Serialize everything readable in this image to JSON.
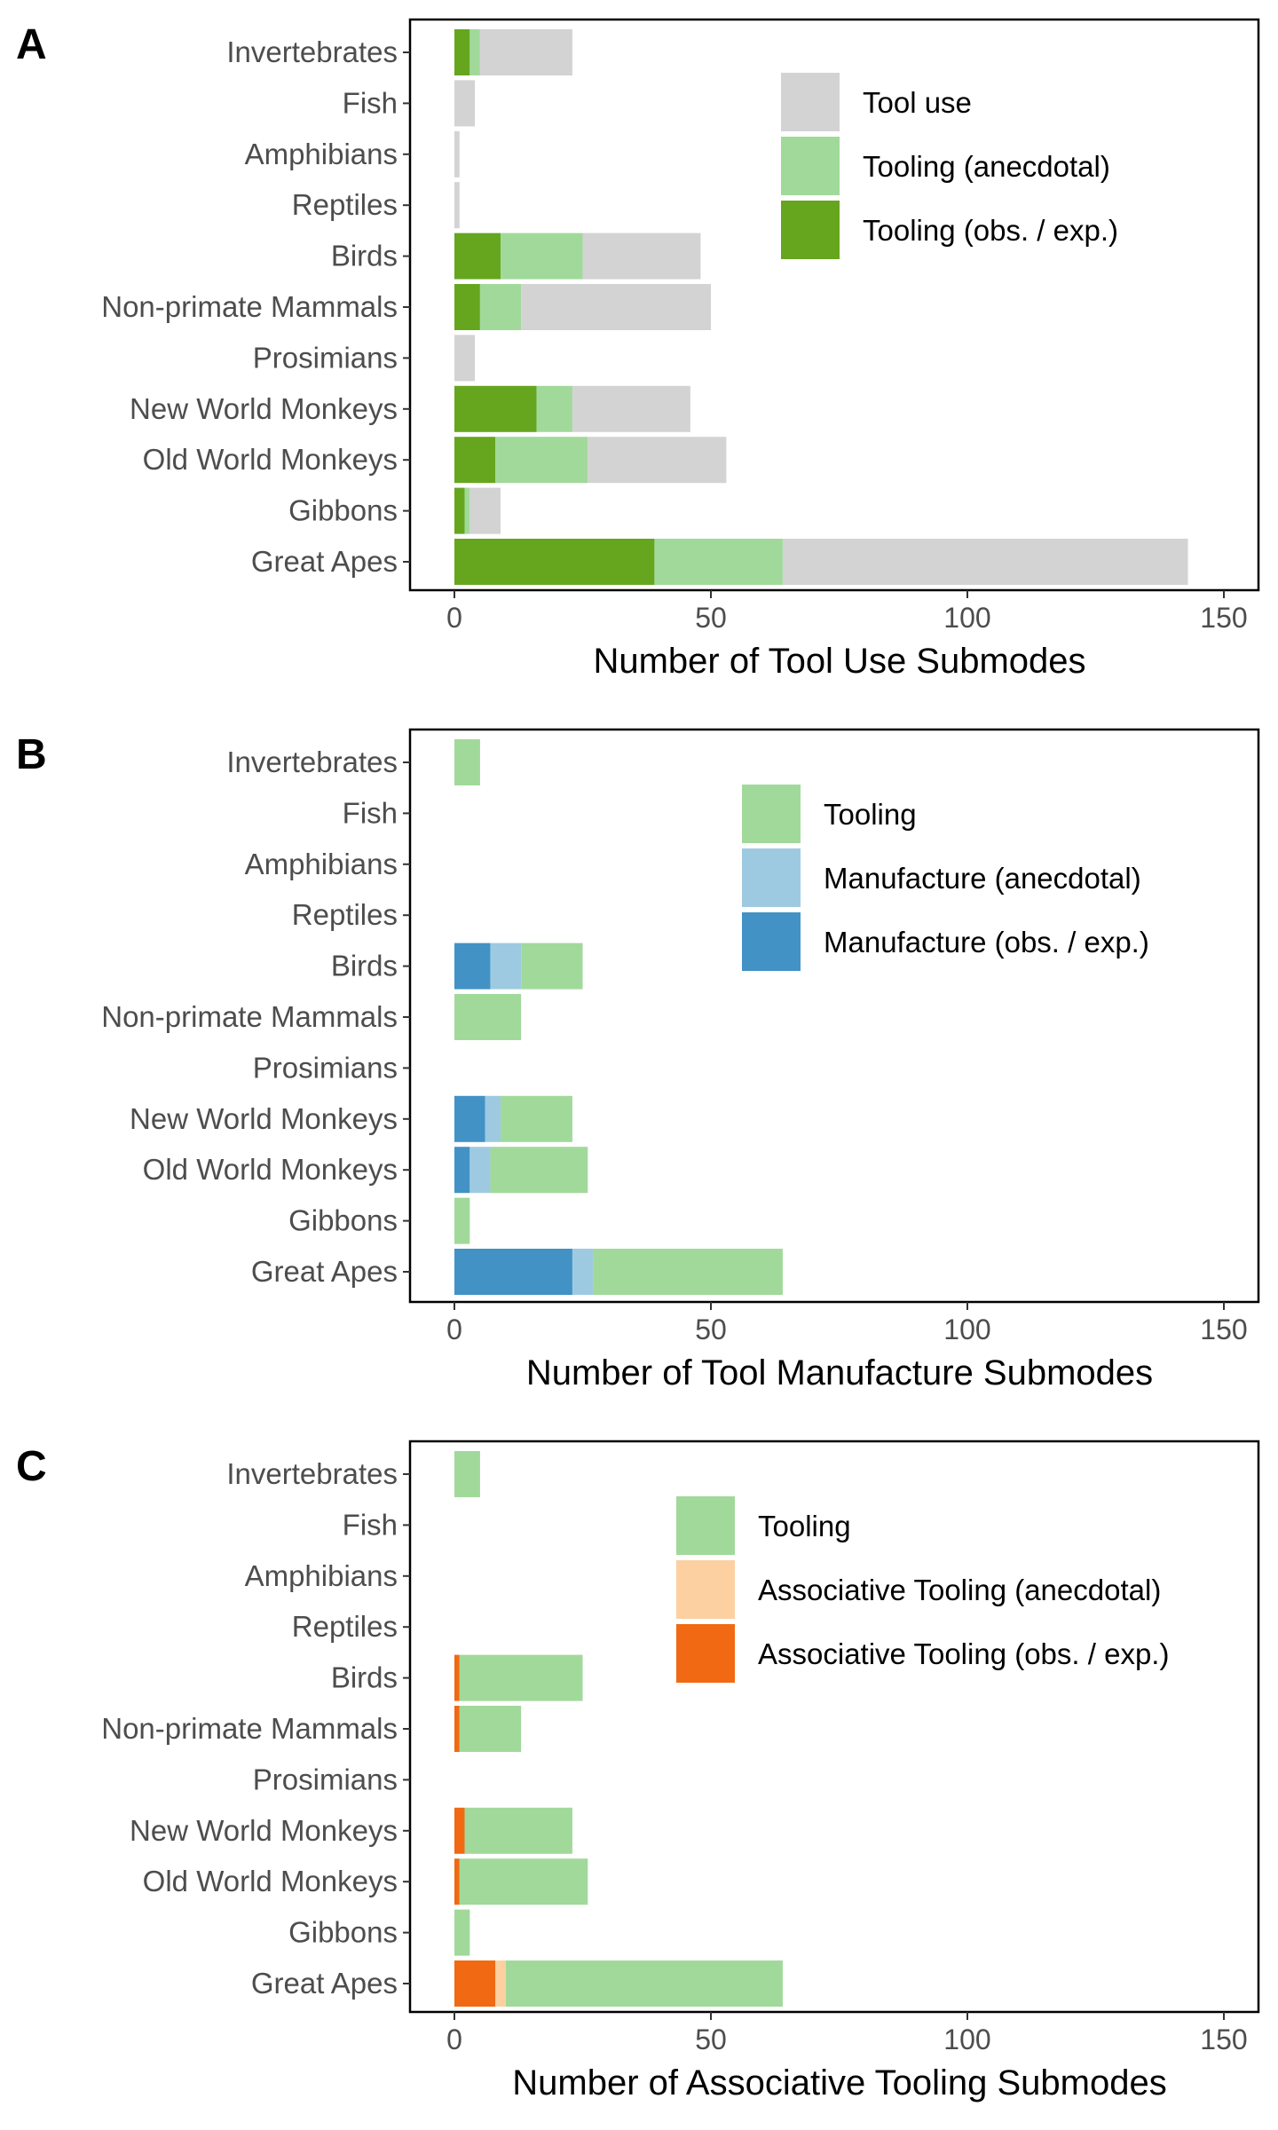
{
  "chart_data": [
    {
      "type": "bar",
      "orientation": "horizontal",
      "stacked": true,
      "panel": "A",
      "categories": [
        "Invertebrates",
        "Fish",
        "Amphibians",
        "Reptiles",
        "Birds",
        "Non-primate Mammals",
        "Prosimians",
        "New World Monkeys",
        "Old World Monkeys",
        "Gibbons",
        "Great Apes"
      ],
      "series": [
        {
          "name": "Tooling (obs. / exp.)",
          "color": "#66a61e",
          "values": [
            3,
            0,
            0,
            0,
            9,
            5,
            0,
            16,
            8,
            2,
            39
          ]
        },
        {
          "name": "Tooling (anecdotal)",
          "color": "#a1d99b",
          "values": [
            2,
            0,
            0,
            0,
            16,
            8,
            0,
            7,
            18,
            1,
            25
          ]
        },
        {
          "name": "Tool use",
          "color": "#d3d3d3",
          "values": [
            18,
            4,
            1,
            1,
            23,
            37,
            4,
            23,
            27,
            6,
            79
          ]
        }
      ],
      "legend_order": [
        "Tool use",
        "Tooling (anecdotal)",
        "Tooling (obs. / exp.)"
      ],
      "xlabel": "Number of Tool Use Submodes",
      "xlim": [
        -8,
        157
      ],
      "xticks": [
        0,
        50,
        100,
        150
      ],
      "legend_position": "top-right"
    },
    {
      "type": "bar",
      "orientation": "horizontal",
      "stacked": true,
      "panel": "B",
      "categories": [
        "Invertebrates",
        "Fish",
        "Amphibians",
        "Reptiles",
        "Birds",
        "Non-primate Mammals",
        "Prosimians",
        "New World Monkeys",
        "Old World Monkeys",
        "Gibbons",
        "Great Apes"
      ],
      "series": [
        {
          "name": "Manufacture (obs. / exp.)",
          "color": "#4292c6",
          "values": [
            0,
            0,
            0,
            0,
            7,
            0,
            0,
            6,
            3,
            0,
            23
          ]
        },
        {
          "name": "Manufacture (anecdotal)",
          "color": "#9ecae1",
          "values": [
            0,
            0,
            0,
            0,
            6,
            0,
            0,
            3,
            4,
            0,
            4
          ]
        },
        {
          "name": "Tooling",
          "color": "#a1d99b",
          "values": [
            5,
            0,
            0,
            0,
            12,
            13,
            0,
            14,
            19,
            3,
            37
          ]
        }
      ],
      "legend_order": [
        "Tooling",
        "Manufacture (anecdotal)",
        "Manufacture (obs. / exp.)"
      ],
      "xlabel": "Number of Tool Manufacture Submodes",
      "xlim": [
        -8,
        157
      ],
      "xticks": [
        0,
        50,
        100,
        150
      ],
      "legend_position": "top-right"
    },
    {
      "type": "bar",
      "orientation": "horizontal",
      "stacked": true,
      "panel": "C",
      "categories": [
        "Invertebrates",
        "Fish",
        "Amphibians",
        "Reptiles",
        "Birds",
        "Non-primate Mammals",
        "Prosimians",
        "New World Monkeys",
        "Old World Monkeys",
        "Gibbons",
        "Great Apes"
      ],
      "series": [
        {
          "name": "Associative Tooling (obs. / exp.)",
          "color": "#f16913",
          "values": [
            0,
            0,
            0,
            0,
            1,
            1,
            0,
            2,
            1,
            0,
            8
          ]
        },
        {
          "name": "Associative Tooling (anecdotal)",
          "color": "#fdd0a2",
          "values": [
            0,
            0,
            0,
            0,
            0,
            0,
            0,
            0,
            0,
            0,
            2
          ]
        },
        {
          "name": "Tooling",
          "color": "#a1d99b",
          "values": [
            5,
            0,
            0,
            0,
            24,
            12,
            0,
            21,
            25,
            3,
            54
          ]
        }
      ],
      "legend_order": [
        "Tooling",
        "Associative Tooling (anecdotal)",
        "Associative Tooling (obs. / exp.)"
      ],
      "xlabel": "Number of Associative Tooling Submodes",
      "xlim": [
        -8,
        157
      ],
      "xticks": [
        0,
        50,
        100,
        150
      ],
      "legend_position": "top-right"
    }
  ]
}
